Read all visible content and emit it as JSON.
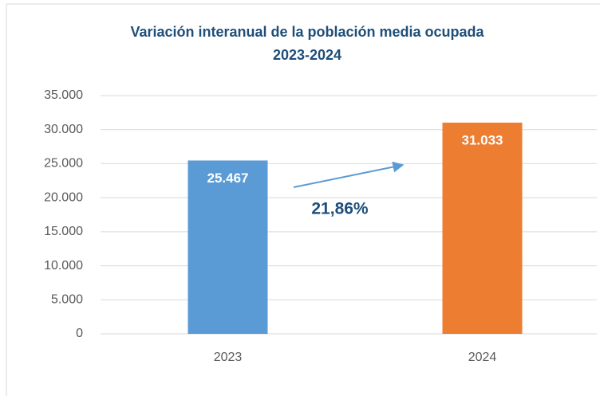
{
  "chart_data": {
    "type": "bar",
    "title": "Variación interanual de la población media ocupada",
    "subtitle": "2023-2024",
    "categories": [
      "2023",
      "2024"
    ],
    "values": [
      25467,
      31033
    ],
    "value_labels": [
      "25.467",
      "31.033"
    ],
    "colors": [
      "#5b9bd5",
      "#ed7d31"
    ],
    "ylim": [
      0,
      35000
    ],
    "yticks": [
      0,
      {
        "value": 5000,
        "label": "5.000"
      },
      {
        "value": 10000,
        "label": "10.000"
      },
      {
        "value": 15000,
        "label": "15.000"
      },
      {
        "value": 20000,
        "label": "20.000"
      },
      {
        "value": 25000,
        "label": "25.000"
      },
      {
        "value": 30000,
        "label": "30.000"
      },
      {
        "value": 35000,
        "label": "35.000"
      }
    ],
    "grid": true,
    "annotation": "21,86%"
  }
}
